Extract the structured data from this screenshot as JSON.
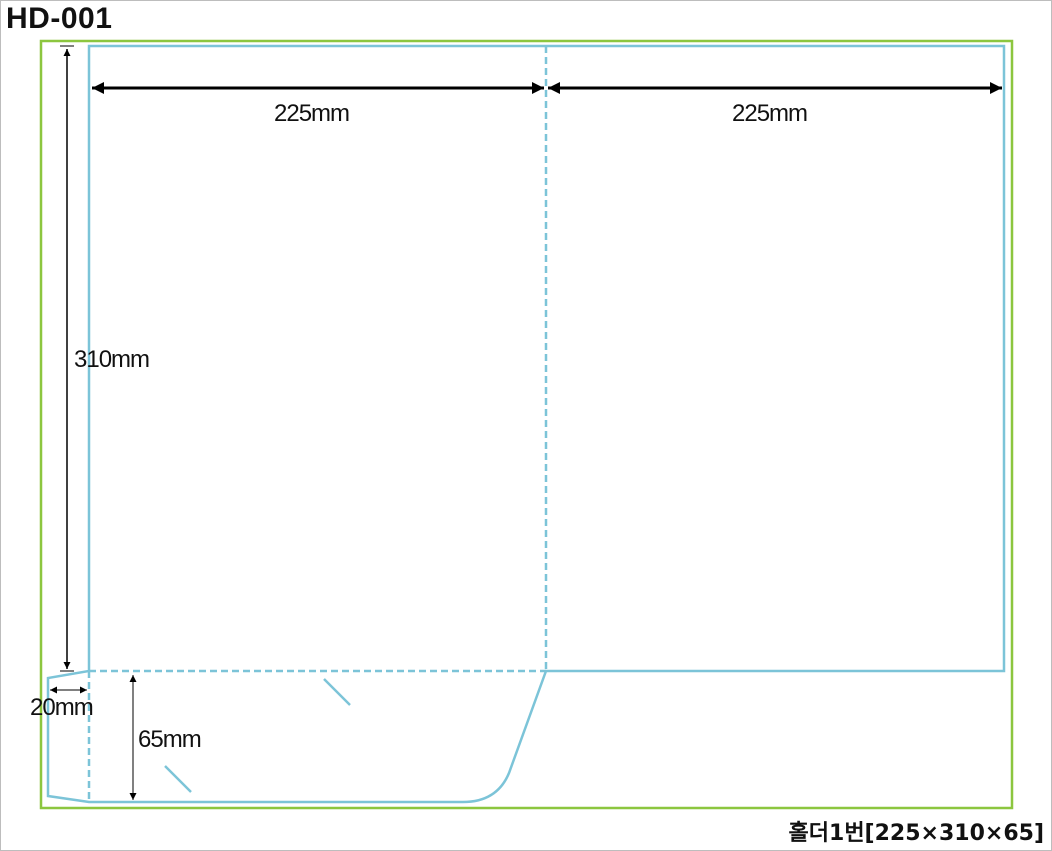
{
  "title": "HD-001",
  "dimensions": {
    "left_panel_width": "225mm",
    "right_panel_width": "225mm",
    "height": "310mm",
    "flap_width": "20mm",
    "pocket_height": "65mm"
  },
  "caption": "홀더1번[225×310×65]",
  "colors": {
    "bleed_border": "#8cc63f",
    "die_line": "#7cc4d8",
    "dimension_line": "#000000"
  }
}
